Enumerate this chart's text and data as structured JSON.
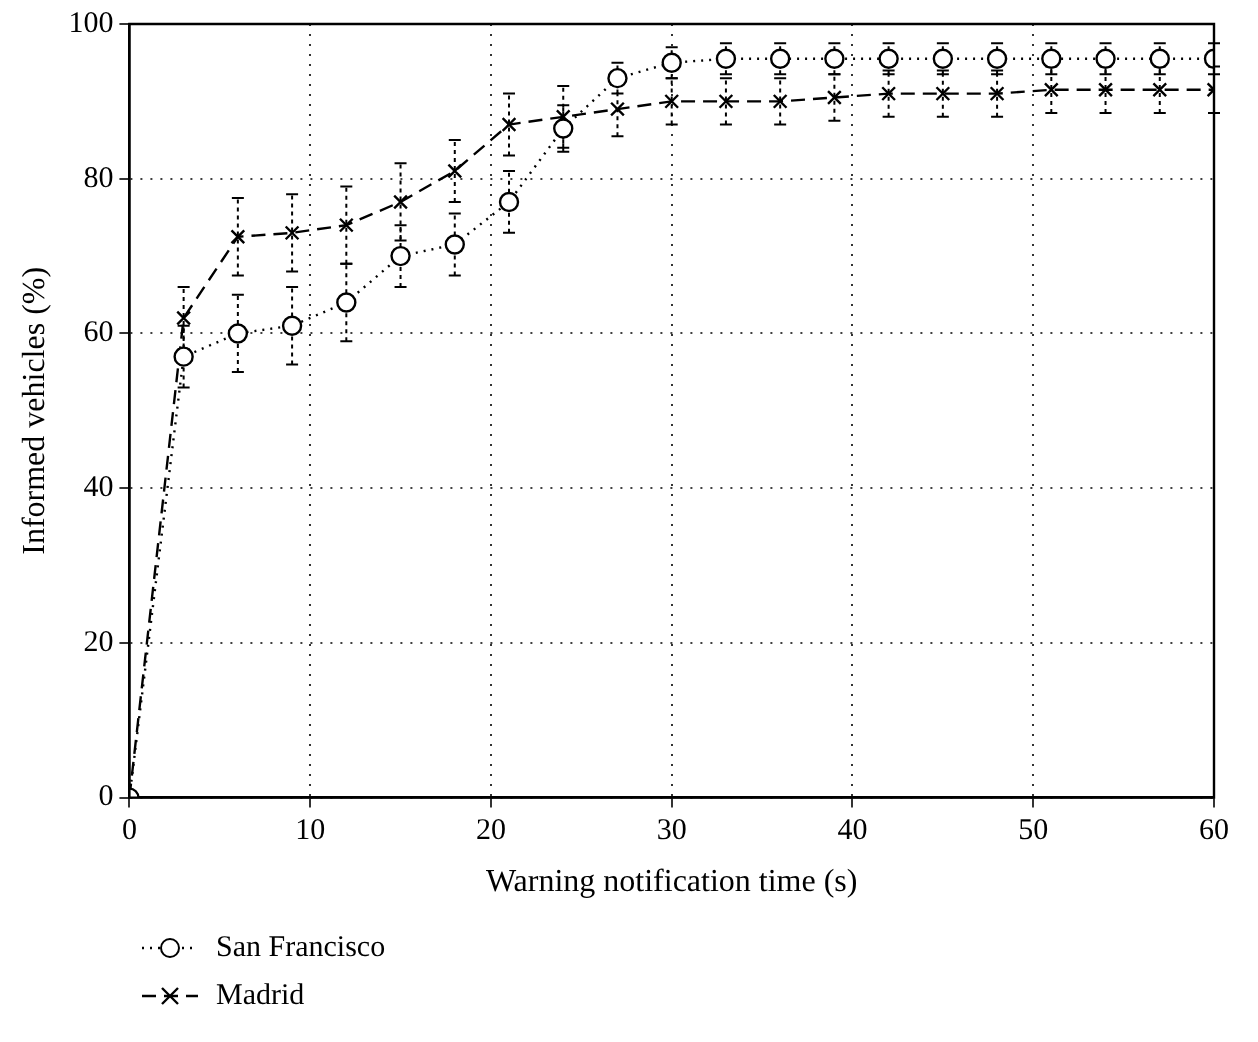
{
  "chart_data": {
    "type": "line",
    "xlabel": "Warning notification time (s)",
    "ylabel": "Informed vehicles (%)",
    "x": [
      0,
      3,
      6,
      9,
      12,
      15,
      18,
      21,
      24,
      27,
      30,
      33,
      36,
      39,
      42,
      45,
      48,
      51,
      54,
      57,
      60
    ],
    "series": [
      {
        "name": "San Francisco",
        "color": "#000000",
        "marker": "circle",
        "line_style": "dotted",
        "values": [
          0,
          57,
          60,
          61,
          64,
          70,
          71.5,
          77,
          86.5,
          93,
          95,
          95.5,
          95.5,
          95.5,
          95.5,
          95.5,
          95.5,
          95.5,
          95.5,
          95.5,
          95.5
        ],
        "errors": [
          null,
          4,
          5,
          5,
          5,
          4,
          4,
          4,
          3,
          2,
          2,
          2,
          2,
          2,
          2,
          2,
          2,
          2,
          2,
          2,
          2
        ]
      },
      {
        "name": "Madrid",
        "color": "#000000",
        "marker": "cross",
        "line_style": "dashed",
        "values": [
          0,
          62,
          72.5,
          73,
          74,
          77,
          81,
          87,
          88,
          89,
          90,
          90,
          90,
          90.5,
          91,
          91,
          91,
          91.5,
          91.5,
          91.5,
          91.5
        ],
        "errors": [
          null,
          4,
          5,
          5,
          5,
          5,
          4,
          4,
          4,
          3.5,
          3,
          3,
          3,
          3,
          3,
          3,
          3,
          3,
          3,
          3,
          3
        ]
      }
    ],
    "xlim": [
      0,
      60
    ],
    "xticks": [
      0,
      10,
      20,
      30,
      40,
      50,
      60
    ],
    "ylim": [
      0,
      100
    ],
    "yticks": [
      0,
      20,
      40,
      60,
      80,
      100
    ],
    "grid": true,
    "legend": "bottom left"
  }
}
